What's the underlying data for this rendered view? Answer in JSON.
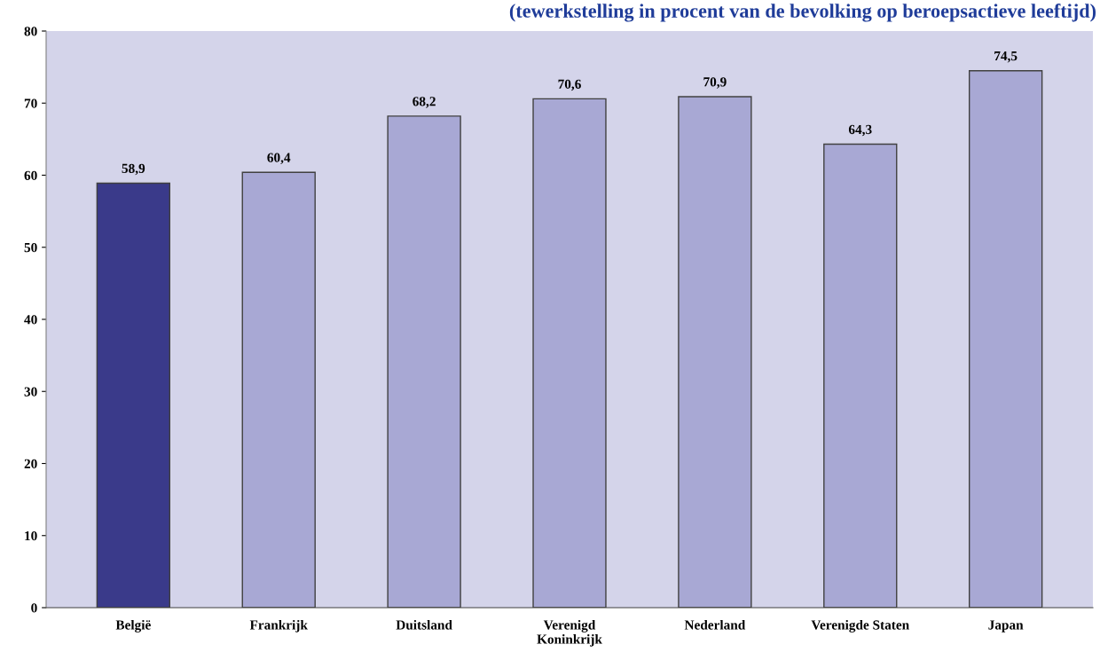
{
  "chart_data": {
    "type": "bar",
    "title": "(tewerkstelling in procent van de bevolking op beroepsactieve leeftijd)",
    "categories": [
      "België",
      "Frankrijk",
      "Duitsland",
      "Verenigd\nKoninkrijk",
      "Nederland",
      "Verenigde Staten",
      "Japan"
    ],
    "values": [
      58.9,
      60.4,
      68.2,
      70.6,
      70.9,
      64.3,
      74.5
    ],
    "colors": [
      "#3a3a8a",
      "#a8a8d4",
      "#a8a8d4",
      "#a8a8d4",
      "#a8a8d4",
      "#a8a8d4",
      "#a8a8d4"
    ],
    "value_labels": [
      "58,9",
      "60,4",
      "68,2",
      "70,6",
      "70,9",
      "64,3",
      "74,5"
    ],
    "ylim": [
      0,
      80
    ],
    "yticks": [
      0,
      10,
      20,
      30,
      40,
      50,
      60,
      70,
      80
    ],
    "grid": false
  }
}
